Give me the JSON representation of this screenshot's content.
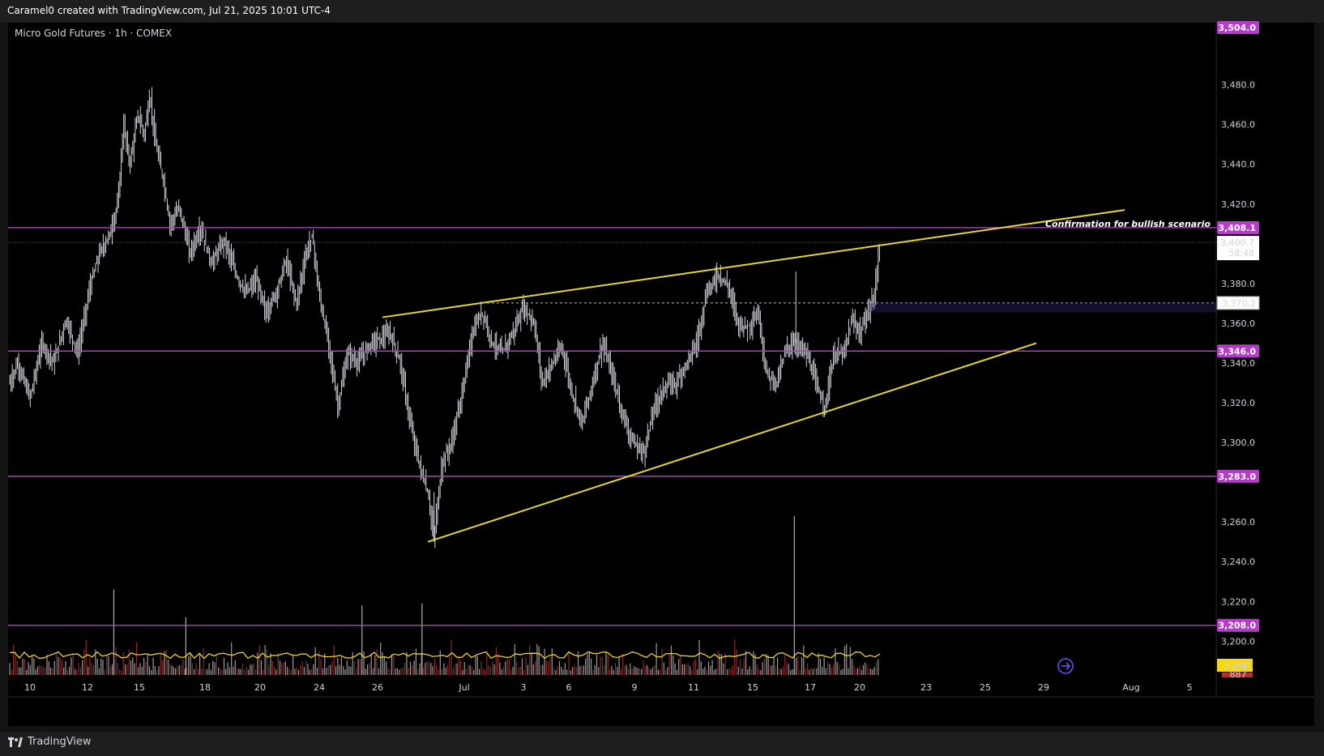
{
  "header": {
    "title": "Caramel0 created with TradingView.com, Jul 21, 2025 10:01 UTC-4"
  },
  "symbol_label": "Micro Gold Futures · 1h · COMEX",
  "footer": {
    "brand": "TradingView"
  },
  "colors": {
    "level": "#b43cc8",
    "trend": "#e6d72a",
    "volume_ma": "#f0d02a",
    "price_bar": "#d1d4dc"
  },
  "annotation": "Confirmation for bullish scenario",
  "chart_data": {
    "type": "ohlc",
    "title": "Micro Gold Futures · 1h · COMEX",
    "x_ticks": [
      "10",
      "12",
      "15",
      "18",
      "20",
      "24",
      "26",
      "Jul",
      "3",
      "6",
      "9",
      "11",
      "15",
      "17",
      "20",
      "23",
      "25",
      "29",
      "Aug",
      "5"
    ],
    "y_ticks": [
      3480,
      3460,
      3440,
      3420,
      3380,
      3360,
      3340,
      3320,
      3300,
      3260,
      3240,
      3220,
      3200
    ],
    "y_tick_labels": [
      "3,480.0",
      "3,460.0",
      "3,440.0",
      "3,420.0",
      "3,380.0",
      "3,360.0",
      "3,340.0",
      "3,320.0",
      "3,300.0",
      "3,260.0",
      "3,240.0",
      "3,220.0",
      "3,200.0"
    ],
    "ylim": [
      3183,
      3509
    ],
    "levels": [
      {
        "value": 3408.1,
        "label": "3,408.1"
      },
      {
        "value": 3346.0,
        "label": "3,346.0"
      },
      {
        "value": 3283.0,
        "label": "3,283.0"
      },
      {
        "value": 3208.0,
        "label": "3,208.0"
      }
    ],
    "top_label": "3,504.0",
    "current_price": {
      "value": 3400.7,
      "label": "3,400.7",
      "countdown": "58:48"
    },
    "dashed_level": {
      "value": 3370.2,
      "label": "3,370.2"
    },
    "trendlines": [
      {
        "name": "upper",
        "from": [
          "26",
          3363
        ],
        "to": [
          "29",
          3417
        ]
      },
      {
        "name": "lower",
        "from": [
          "Jul",
          3250
        ],
        "to": [
          "29",
          3350
        ]
      }
    ],
    "price_path": [
      [
        0,
        3330
      ],
      [
        10,
        3340
      ],
      [
        25,
        3322
      ],
      [
        40,
        3350
      ],
      [
        55,
        3340
      ],
      [
        70,
        3362
      ],
      [
        85,
        3345
      ],
      [
        100,
        3378
      ],
      [
        112,
        3395
      ],
      [
        125,
        3405
      ],
      [
        135,
        3420
      ],
      [
        142,
        3460
      ],
      [
        150,
        3440
      ],
      [
        160,
        3465
      ],
      [
        168,
        3455
      ],
      [
        175,
        3475
      ],
      [
        182,
        3450
      ],
      [
        192,
        3432
      ],
      [
        200,
        3410
      ],
      [
        212,
        3418
      ],
      [
        225,
        3395
      ],
      [
        238,
        3408
      ],
      [
        252,
        3390
      ],
      [
        268,
        3402
      ],
      [
        282,
        3385
      ],
      [
        295,
        3375
      ],
      [
        308,
        3382
      ],
      [
        320,
        3365
      ],
      [
        335,
        3378
      ],
      [
        345,
        3392
      ],
      [
        358,
        3370
      ],
      [
        370,
        3395
      ],
      [
        378,
        3404
      ],
      [
        386,
        3375
      ],
      [
        398,
        3350
      ],
      [
        410,
        3318
      ],
      [
        422,
        3345
      ],
      [
        435,
        3340
      ],
      [
        450,
        3350
      ],
      [
        462,
        3352
      ],
      [
        475,
        3355
      ],
      [
        488,
        3340
      ],
      [
        500,
        3310
      ],
      [
        512,
        3288
      ],
      [
        522,
        3275
      ],
      [
        530,
        3252
      ],
      [
        540,
        3290
      ],
      [
        552,
        3300
      ],
      [
        565,
        3325
      ],
      [
        578,
        3355
      ],
      [
        590,
        3366
      ],
      [
        603,
        3350
      ],
      [
        615,
        3345
      ],
      [
        628,
        3355
      ],
      [
        642,
        3368
      ],
      [
        655,
        3360
      ],
      [
        665,
        3330
      ],
      [
        678,
        3340
      ],
      [
        690,
        3348
      ],
      [
        702,
        3325
      ],
      [
        715,
        3310
      ],
      [
        728,
        3330
      ],
      [
        740,
        3350
      ],
      [
        752,
        3335
      ],
      [
        765,
        3315
      ],
      [
        778,
        3300
      ],
      [
        792,
        3295
      ],
      [
        805,
        3318
      ],
      [
        818,
        3328
      ],
      [
        832,
        3330
      ],
      [
        845,
        3340
      ],
      [
        858,
        3350
      ],
      [
        870,
        3375
      ],
      [
        885,
        3385
      ],
      [
        898,
        3378
      ],
      [
        910,
        3360
      ],
      [
        922,
        3358
      ],
      [
        935,
        3365
      ],
      [
        945,
        3335
      ],
      [
        958,
        3330
      ],
      [
        970,
        3348
      ],
      [
        982,
        3350
      ],
      [
        995,
        3345
      ],
      [
        1008,
        3328
      ],
      [
        1018,
        3318
      ],
      [
        1030,
        3345
      ],
      [
        1042,
        3345
      ],
      [
        1052,
        3362
      ],
      [
        1062,
        3355
      ],
      [
        1072,
        3365
      ],
      [
        1080,
        3375
      ],
      [
        1087,
        3401
      ]
    ],
    "volume": {
      "name": "Volume",
      "last_label": "5.84K",
      "overflow_label": "887",
      "spikes": [
        [
          130,
          3226
        ],
        [
          440,
          3218
        ],
        [
          980,
          3263
        ],
        [
          515,
          3219
        ],
        [
          220,
          3212
        ]
      ],
      "ma_level": 3193
    }
  }
}
